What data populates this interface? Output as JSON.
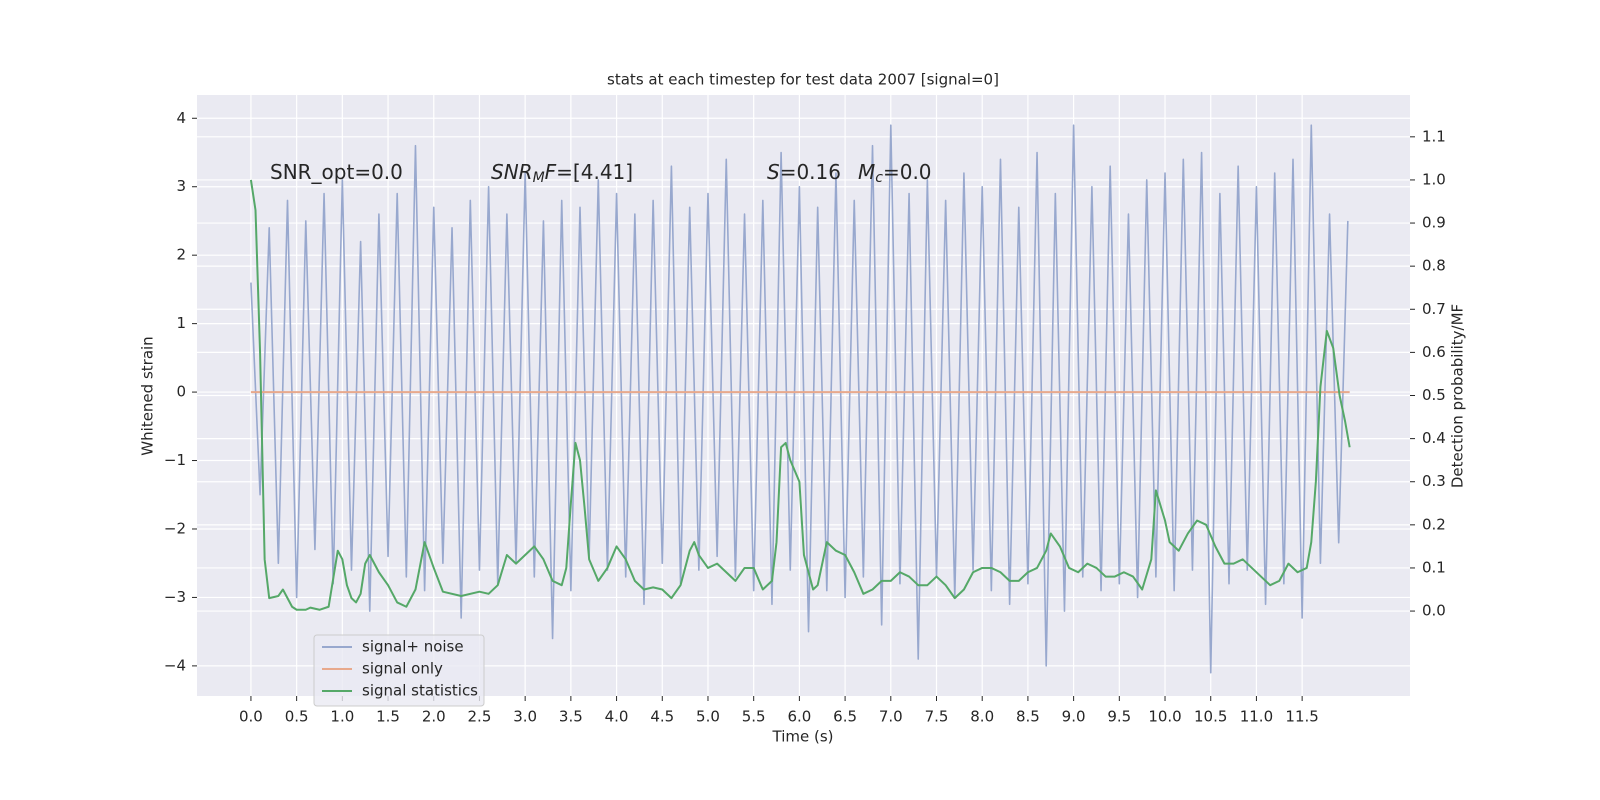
{
  "chart_data": {
    "type": "line",
    "title": "stats at each timestep for test data 2007 [signal=0]",
    "x_label": "Time (s)",
    "y_label": "Whitened strain",
    "y2_label": "Detection probability/MF",
    "annotations": [
      [
        {
          "text": "SNR_opt=0.0"
        }
      ],
      [
        {
          "text": "SNR",
          "italic": true
        },
        {
          "text": "M",
          "italic": true,
          "sub": true
        },
        {
          "text": "F",
          "italic": true
        },
        {
          "text": "=[4.41]"
        }
      ],
      [
        {
          "text": "S",
          "italic": true
        },
        {
          "text": "=0.16"
        }
      ],
      [
        {
          "text": "M",
          "italic": true
        },
        {
          "text": "c",
          "italic": true,
          "sub": true
        },
        {
          "text": "=0.0"
        }
      ]
    ],
    "xlim": [
      -0.59,
      12.68
    ],
    "ylim": [
      -4.44,
      4.34
    ],
    "y2lim": [
      -0.197,
      1.197
    ],
    "xticks": [
      {
        "value": 0,
        "label": "0.0"
      },
      0.5,
      {
        "value": 1,
        "label": "1.0"
      },
      1.5,
      {
        "value": 2,
        "label": "2.0"
      },
      2.5,
      {
        "value": 3,
        "label": "3.0"
      },
      3.5,
      {
        "value": 4,
        "label": "4.0"
      },
      4.5,
      {
        "value": 5,
        "label": "5.0"
      },
      5.5,
      {
        "value": 6,
        "label": "6.0"
      },
      6.5,
      {
        "value": 7,
        "label": "7.0"
      },
      7.5,
      {
        "value": 8,
        "label": "8.0"
      },
      8.5,
      {
        "value": 9,
        "label": "9.0"
      },
      9.5,
      {
        "value": 10,
        "label": "10.0"
      },
      10.5,
      {
        "value": 11,
        "label": "11.0"
      },
      11.5
    ],
    "yticks": [
      {
        "value": -4,
        "label": "−4"
      },
      {
        "value": -3,
        "label": "−3"
      },
      {
        "value": -2,
        "label": "−2"
      },
      {
        "value": -1,
        "label": "−1"
      },
      0,
      1,
      2,
      3,
      4
    ],
    "y2ticks": [
      {
        "value": 0,
        "label": "0.0"
      },
      0.1,
      0.2,
      0.3,
      0.4,
      0.5,
      0.6,
      0.7,
      0.8,
      0.9,
      {
        "value": 1,
        "label": "1.0"
      },
      1.1
    ],
    "grid": true,
    "legend": "lower left",
    "series": [
      {
        "name": "signal+ noise",
        "color": "#98a8ce",
        "x": [
          0,
          0.1,
          0.2,
          0.3,
          0.4,
          0.5,
          0.6,
          0.7,
          0.8,
          0.9,
          1,
          1.1,
          1.2,
          1.3,
          1.4,
          1.5,
          1.6,
          1.7,
          1.8,
          1.9,
          2,
          2.1,
          2.2,
          2.3,
          2.4,
          2.5,
          2.6,
          2.7,
          2.8,
          2.9,
          3,
          3.1,
          3.2,
          3.3,
          3.4,
          3.5,
          3.6,
          3.7,
          3.8,
          3.9,
          4,
          4.1,
          4.2,
          4.3,
          4.4,
          4.5,
          4.6,
          4.7,
          4.8,
          4.9,
          5,
          5.1,
          5.2,
          5.3,
          5.4,
          5.5,
          5.6,
          5.7,
          5.8,
          5.9,
          6,
          6.1,
          6.2,
          6.3,
          6.4,
          6.5,
          6.6,
          6.7,
          6.8,
          6.9,
          7,
          7.1,
          7.2,
          7.3,
          7.4,
          7.5,
          7.6,
          7.7,
          7.8,
          7.9,
          8,
          8.1,
          8.2,
          8.3,
          8.4,
          8.5,
          8.6,
          8.7,
          8.8,
          8.9,
          9,
          9.1,
          9.2,
          9.3,
          9.4,
          9.5,
          9.6,
          9.7,
          9.8,
          9.9,
          10,
          10.1,
          10.2,
          10.3,
          10.4,
          10.5,
          10.6,
          10.7,
          10.8,
          10.9,
          11,
          11.1,
          11.2,
          11.3,
          11.4,
          11.5,
          11.6,
          11.7,
          11.8,
          11.9,
          12
        ],
        "values": [
          1.6,
          -1.5,
          2.4,
          -2.5,
          2.8,
          -3.0,
          2.5,
          -2.3,
          2.9,
          -2.8,
          3.1,
          -2.6,
          2.2,
          -3.2,
          2.6,
          -2.4,
          2.9,
          -2.7,
          3.6,
          -2.9,
          2.7,
          -2.5,
          2.4,
          -3.3,
          2.8,
          -2.6,
          3.0,
          -2.8,
          2.6,
          -2.5,
          3.2,
          -2.7,
          2.5,
          -3.6,
          2.8,
          -2.9,
          2.7,
          -2.4,
          3.1,
          -2.6,
          2.9,
          -2.7,
          2.6,
          -3.1,
          2.8,
          -2.5,
          3.3,
          -2.8,
          2.7,
          -2.6,
          2.9,
          -2.4,
          3.4,
          -2.7,
          2.6,
          -2.9,
          2.8,
          -3.1,
          3.5,
          -2.6,
          3.0,
          -3.5,
          2.7,
          -2.9,
          3.2,
          -3.0,
          2.8,
          -2.7,
          3.6,
          -3.4,
          3.9,
          -2.8,
          2.9,
          -3.9,
          3.1,
          -2.7,
          2.8,
          -3.0,
          3.2,
          -2.6,
          3.0,
          -2.9,
          3.4,
          -3.1,
          2.7,
          -2.8,
          3.5,
          -4.0,
          2.9,
          -3.2,
          3.9,
          -2.7,
          3.0,
          -2.9,
          3.3,
          -2.8,
          2.6,
          -3.0,
          3.1,
          -2.7,
          3.2,
          -2.9,
          3.4,
          -2.6,
          3.5,
          -4.1,
          2.9,
          -2.8,
          3.3,
          -2.6,
          3.0,
          -3.1,
          3.2,
          -2.8,
          3.4,
          -3.3,
          3.9,
          -2.5,
          2.6,
          -2.2,
          2.5
        ]
      },
      {
        "name": "signal only",
        "color": "#e8a98c",
        "x": [
          0,
          12.02
        ],
        "values": [
          0,
          0
        ]
      },
      {
        "name": "signal statistics",
        "color": "#55a868",
        "axis": "y2",
        "x": [
          0,
          0.05,
          0.1,
          0.15,
          0.2,
          0.3,
          0.35,
          0.45,
          0.5,
          0.6,
          0.65,
          0.75,
          0.85,
          0.95,
          1,
          1.05,
          1.1,
          1.15,
          1.2,
          1.25,
          1.3,
          1.4,
          1.5,
          1.6,
          1.7,
          1.8,
          1.9,
          2,
          2.1,
          2.3,
          2.5,
          2.6,
          2.7,
          2.8,
          2.9,
          3,
          3.1,
          3.2,
          3.3,
          3.4,
          3.45,
          3.5,
          3.55,
          3.6,
          3.65,
          3.7,
          3.8,
          3.9,
          4,
          4.1,
          4.2,
          4.3,
          4.4,
          4.5,
          4.6,
          4.7,
          4.8,
          4.85,
          4.9,
          5,
          5.1,
          5.2,
          5.3,
          5.4,
          5.5,
          5.6,
          5.7,
          5.75,
          5.8,
          5.85,
          5.9,
          6,
          6.05,
          6.15,
          6.2,
          6.3,
          6.4,
          6.5,
          6.6,
          6.7,
          6.8,
          6.9,
          7,
          7.1,
          7.2,
          7.3,
          7.4,
          7.5,
          7.6,
          7.7,
          7.8,
          7.9,
          8,
          8.1,
          8.2,
          8.3,
          8.4,
          8.5,
          8.6,
          8.7,
          8.75,
          8.85,
          8.95,
          9.05,
          9.15,
          9.25,
          9.35,
          9.45,
          9.55,
          9.65,
          9.75,
          9.85,
          9.9,
          10,
          10.05,
          10.15,
          10.25,
          10.35,
          10.45,
          10.55,
          10.65,
          10.75,
          10.85,
          10.95,
          11.05,
          11.15,
          11.25,
          11.35,
          11.45,
          11.55,
          11.6,
          11.65,
          11.7,
          11.77,
          11.84,
          11.91,
          11.97,
          12.02
        ],
        "values": [
          1.0,
          0.93,
          0.6,
          0.12,
          0.03,
          0.035,
          0.05,
          0.01,
          0.003,
          0.003,
          0.008,
          0.003,
          0.01,
          0.14,
          0.12,
          0.06,
          0.03,
          0.02,
          0.04,
          0.11,
          0.13,
          0.09,
          0.06,
          0.02,
          0.01,
          0.05,
          0.16,
          0.1,
          0.045,
          0.035,
          0.045,
          0.04,
          0.06,
          0.13,
          0.11,
          0.13,
          0.15,
          0.12,
          0.07,
          0.06,
          0.1,
          0.25,
          0.39,
          0.35,
          0.24,
          0.12,
          0.07,
          0.1,
          0.15,
          0.12,
          0.07,
          0.05,
          0.055,
          0.05,
          0.03,
          0.06,
          0.14,
          0.16,
          0.13,
          0.1,
          0.11,
          0.09,
          0.07,
          0.1,
          0.1,
          0.05,
          0.07,
          0.16,
          0.38,
          0.39,
          0.35,
          0.3,
          0.13,
          0.05,
          0.06,
          0.16,
          0.14,
          0.13,
          0.09,
          0.04,
          0.05,
          0.07,
          0.07,
          0.09,
          0.08,
          0.06,
          0.06,
          0.08,
          0.06,
          0.03,
          0.05,
          0.09,
          0.1,
          0.1,
          0.09,
          0.07,
          0.07,
          0.09,
          0.1,
          0.14,
          0.18,
          0.15,
          0.1,
          0.09,
          0.11,
          0.1,
          0.08,
          0.08,
          0.09,
          0.08,
          0.05,
          0.12,
          0.28,
          0.21,
          0.16,
          0.14,
          0.18,
          0.21,
          0.2,
          0.15,
          0.11,
          0.11,
          0.12,
          0.1,
          0.08,
          0.06,
          0.07,
          0.11,
          0.09,
          0.1,
          0.16,
          0.3,
          0.52,
          0.65,
          0.61,
          0.5,
          0.44,
          0.38
        ]
      }
    ]
  }
}
